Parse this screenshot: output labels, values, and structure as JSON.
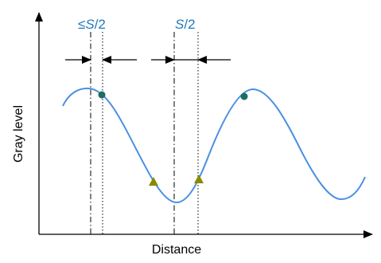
{
  "diagram": {
    "left_label": {
      "prefix": "≤",
      "symbol": "S",
      "suffix": "/2"
    },
    "right_label": {
      "symbol": "S",
      "suffix": "/2"
    },
    "y_axis_label": "Gray level",
    "x_axis_label": "Distance",
    "colors": {
      "curve": "#4a90e2",
      "circle_marker": "#1f6b66",
      "triangle_marker": "#8a8a00",
      "label_blue": "#1f7ab8",
      "axis": "#000000"
    },
    "marker_types": [
      "circle",
      "circle",
      "triangle",
      "triangle"
    ]
  }
}
